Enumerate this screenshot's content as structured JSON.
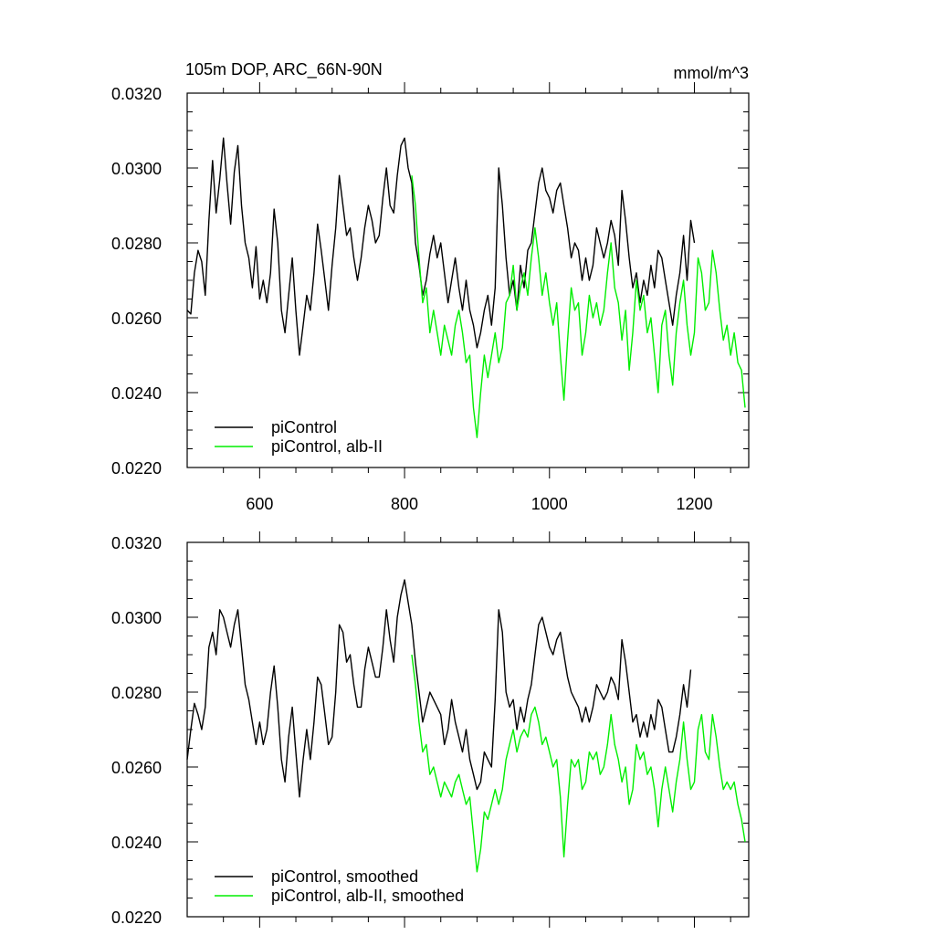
{
  "title_left": "105m DOP, ARC_66N-90N",
  "title_right": "mmol/m^3",
  "colors": {
    "control": "#000000",
    "alb": "#00ee00"
  },
  "chart_data": [
    {
      "type": "line",
      "xlim": [
        500,
        1275
      ],
      "ylim": [
        0.022,
        0.032
      ],
      "yticks": [
        "0.0220",
        "0.0240",
        "0.0260",
        "0.0280",
        "0.0300",
        "0.0320"
      ],
      "xticks": [
        "600",
        "800",
        "1000",
        "1200"
      ],
      "legend": "bottom-left",
      "series": [
        {
          "name": "piControl",
          "x": [
            500,
            505,
            510,
            515,
            520,
            525,
            530,
            535,
            540,
            545,
            550,
            555,
            560,
            565,
            570,
            575,
            580,
            585,
            590,
            595,
            600,
            605,
            610,
            615,
            620,
            625,
            630,
            635,
            640,
            645,
            650,
            655,
            660,
            665,
            670,
            675,
            680,
            685,
            690,
            695,
            700,
            705,
            710,
            715,
            720,
            725,
            730,
            735,
            740,
            745,
            750,
            755,
            760,
            765,
            770,
            775,
            780,
            785,
            790,
            795,
            800,
            805,
            810,
            815,
            820,
            825,
            830,
            835,
            840,
            845,
            850,
            855,
            860,
            865,
            870,
            875,
            880,
            885,
            890,
            895,
            900,
            905,
            910,
            915,
            920,
            925,
            930,
            935,
            940,
            945,
            950,
            955,
            960,
            965,
            970,
            975,
            980,
            985,
            990,
            995,
            1000,
            1005,
            1010,
            1015,
            1020,
            1025,
            1030,
            1035,
            1040,
            1045,
            1050,
            1055,
            1060,
            1065,
            1070,
            1075,
            1080,
            1085,
            1090,
            1095,
            1100,
            1105,
            1110,
            1115,
            1120,
            1125,
            1130,
            1135,
            1140,
            1145,
            1150,
            1155,
            1160,
            1165,
            1170,
            1175,
            1180,
            1185,
            1190,
            1195,
            1200
          ],
          "values": [
            0.0262,
            0.0261,
            0.0272,
            0.0278,
            0.0275,
            0.0266,
            0.0286,
            0.0302,
            0.0288,
            0.0297,
            0.0308,
            0.0296,
            0.0285,
            0.0299,
            0.0306,
            0.029,
            0.028,
            0.0276,
            0.0268,
            0.0279,
            0.0265,
            0.027,
            0.0264,
            0.0272,
            0.0289,
            0.028,
            0.0262,
            0.0256,
            0.0266,
            0.0276,
            0.0262,
            0.025,
            0.0258,
            0.0266,
            0.0262,
            0.0272,
            0.0285,
            0.0278,
            0.027,
            0.0262,
            0.0274,
            0.0284,
            0.0298,
            0.029,
            0.0282,
            0.0284,
            0.0276,
            0.027,
            0.0276,
            0.0284,
            0.029,
            0.0286,
            0.028,
            0.0282,
            0.0292,
            0.03,
            0.029,
            0.0288,
            0.0298,
            0.0306,
            0.0308,
            0.03,
            0.0296,
            0.028,
            0.0274,
            0.0266,
            0.027,
            0.0277,
            0.0282,
            0.0276,
            0.028,
            0.0272,
            0.0264,
            0.027,
            0.0276,
            0.0268,
            0.0262,
            0.027,
            0.0262,
            0.0258,
            0.0252,
            0.0256,
            0.0262,
            0.0266,
            0.0258,
            0.0268,
            0.03,
            0.029,
            0.0276,
            0.0266,
            0.027,
            0.0262,
            0.0274,
            0.0268,
            0.0278,
            0.028,
            0.0288,
            0.0296,
            0.03,
            0.0294,
            0.0292,
            0.0288,
            0.0294,
            0.0296,
            0.029,
            0.0284,
            0.0276,
            0.028,
            0.0278,
            0.027,
            0.0276,
            0.027,
            0.0274,
            0.0284,
            0.028,
            0.0276,
            0.028,
            0.0286,
            0.0282,
            0.0274,
            0.0294,
            0.0286,
            0.0276,
            0.0268,
            0.0272,
            0.0264,
            0.027,
            0.0266,
            0.0274,
            0.0268,
            0.0278,
            0.0276,
            0.027,
            0.0264,
            0.0258,
            0.0266,
            0.0272,
            0.0282,
            0.027,
            0.0286,
            0.028
          ]
        },
        {
          "name": "piControl, alb-II",
          "x": [
            810,
            815,
            820,
            825,
            830,
            835,
            840,
            845,
            850,
            855,
            860,
            865,
            870,
            875,
            880,
            885,
            890,
            895,
            900,
            905,
            910,
            915,
            920,
            925,
            930,
            935,
            940,
            945,
            950,
            955,
            960,
            965,
            970,
            975,
            980,
            985,
            990,
            995,
            1000,
            1005,
            1010,
            1015,
            1020,
            1025,
            1030,
            1035,
            1040,
            1045,
            1050,
            1055,
            1060,
            1065,
            1070,
            1075,
            1080,
            1085,
            1090,
            1095,
            1100,
            1105,
            1110,
            1115,
            1120,
            1125,
            1130,
            1135,
            1140,
            1145,
            1150,
            1155,
            1160,
            1165,
            1170,
            1175,
            1180,
            1185,
            1190,
            1195,
            1200,
            1205,
            1210,
            1215,
            1220,
            1225,
            1230,
            1235,
            1240,
            1245,
            1250,
            1255,
            1260,
            1265,
            1270
          ],
          "values": [
            0.0298,
            0.029,
            0.0276,
            0.0264,
            0.0268,
            0.0256,
            0.0262,
            0.0256,
            0.025,
            0.0258,
            0.0254,
            0.025,
            0.0258,
            0.0262,
            0.0256,
            0.0248,
            0.025,
            0.0236,
            0.0228,
            0.024,
            0.025,
            0.0244,
            0.025,
            0.0256,
            0.0248,
            0.0252,
            0.0264,
            0.0266,
            0.0274,
            0.0262,
            0.0268,
            0.0272,
            0.0266,
            0.0276,
            0.0284,
            0.0276,
            0.0266,
            0.0272,
            0.0264,
            0.0258,
            0.0264,
            0.025,
            0.0238,
            0.0254,
            0.0268,
            0.0262,
            0.0264,
            0.025,
            0.0256,
            0.0266,
            0.026,
            0.0264,
            0.0258,
            0.0262,
            0.0272,
            0.028,
            0.0268,
            0.0264,
            0.0254,
            0.0262,
            0.0246,
            0.0256,
            0.027,
            0.0262,
            0.0266,
            0.0256,
            0.026,
            0.025,
            0.024,
            0.0258,
            0.0262,
            0.025,
            0.0242,
            0.0256,
            0.0264,
            0.027,
            0.0258,
            0.025,
            0.0256,
            0.0276,
            0.0272,
            0.0262,
            0.0264,
            0.0278,
            0.0272,
            0.0262,
            0.0254,
            0.0258,
            0.025,
            0.0256,
            0.0248,
            0.0246,
            0.0236
          ]
        }
      ]
    },
    {
      "type": "line",
      "xlim": [
        500,
        1275
      ],
      "ylim": [
        0.022,
        0.032
      ],
      "yticks": [
        "0.0220",
        "0.0240",
        "0.0260",
        "0.0280",
        "0.0300",
        "0.0320"
      ],
      "xticks": [],
      "legend": "bottom-left",
      "series": [
        {
          "name": "piControl, smoothed",
          "x": [
            500,
            505,
            510,
            515,
            520,
            525,
            530,
            535,
            540,
            545,
            550,
            555,
            560,
            565,
            570,
            575,
            580,
            585,
            590,
            595,
            600,
            605,
            610,
            615,
            620,
            625,
            630,
            635,
            640,
            645,
            650,
            655,
            660,
            665,
            670,
            675,
            680,
            685,
            690,
            695,
            700,
            705,
            710,
            715,
            720,
            725,
            730,
            735,
            740,
            745,
            750,
            755,
            760,
            765,
            770,
            775,
            780,
            785,
            790,
            795,
            800,
            805,
            810,
            815,
            820,
            825,
            830,
            835,
            840,
            845,
            850,
            855,
            860,
            865,
            870,
            875,
            880,
            885,
            890,
            895,
            900,
            905,
            910,
            915,
            920,
            925,
            930,
            935,
            940,
            945,
            950,
            955,
            960,
            965,
            970,
            975,
            980,
            985,
            990,
            995,
            1000,
            1005,
            1010,
            1015,
            1020,
            1025,
            1030,
            1035,
            1040,
            1045,
            1050,
            1055,
            1060,
            1065,
            1070,
            1075,
            1080,
            1085,
            1090,
            1095,
            1100,
            1105,
            1110,
            1115,
            1120,
            1125,
            1130,
            1135,
            1140,
            1145,
            1150,
            1155,
            1160,
            1165,
            1170,
            1175,
            1180,
            1185,
            1190,
            1195
          ],
          "values": [
            0.0262,
            0.027,
            0.0277,
            0.0274,
            0.027,
            0.0276,
            0.0292,
            0.0296,
            0.029,
            0.0302,
            0.03,
            0.0296,
            0.0292,
            0.0298,
            0.0302,
            0.0292,
            0.0282,
            0.0278,
            0.0272,
            0.0266,
            0.0272,
            0.0266,
            0.027,
            0.028,
            0.0287,
            0.0276,
            0.0262,
            0.0256,
            0.0268,
            0.0276,
            0.0264,
            0.0252,
            0.0262,
            0.027,
            0.0262,
            0.0272,
            0.0284,
            0.0282,
            0.0274,
            0.0266,
            0.0268,
            0.028,
            0.0298,
            0.0296,
            0.0288,
            0.029,
            0.0282,
            0.0276,
            0.0276,
            0.0286,
            0.0292,
            0.0288,
            0.0284,
            0.0284,
            0.0292,
            0.0302,
            0.0294,
            0.0288,
            0.03,
            0.0306,
            0.031,
            0.0304,
            0.0298,
            0.0288,
            0.028,
            0.0272,
            0.0276,
            0.028,
            0.0278,
            0.0276,
            0.0274,
            0.0266,
            0.027,
            0.0278,
            0.0272,
            0.0268,
            0.0264,
            0.027,
            0.0262,
            0.0258,
            0.0254,
            0.0256,
            0.0264,
            0.0262,
            0.026,
            0.0278,
            0.0302,
            0.0296,
            0.028,
            0.0276,
            0.0278,
            0.027,
            0.0276,
            0.0272,
            0.0278,
            0.0282,
            0.029,
            0.0298,
            0.03,
            0.0296,
            0.0292,
            0.029,
            0.0294,
            0.0296,
            0.029,
            0.0284,
            0.028,
            0.0278,
            0.0276,
            0.0272,
            0.0276,
            0.0272,
            0.0276,
            0.0282,
            0.028,
            0.0278,
            0.028,
            0.0284,
            0.0282,
            0.0278,
            0.0294,
            0.0288,
            0.028,
            0.0272,
            0.0274,
            0.0268,
            0.0272,
            0.0268,
            0.0274,
            0.027,
            0.0278,
            0.0276,
            0.027,
            0.0264,
            0.0264,
            0.0268,
            0.0274,
            0.0282,
            0.0276,
            0.0286
          ]
        },
        {
          "name": "piControl, alb-II, smoothed",
          "x": [
            810,
            815,
            820,
            825,
            830,
            835,
            840,
            845,
            850,
            855,
            860,
            865,
            870,
            875,
            880,
            885,
            890,
            895,
            900,
            905,
            910,
            915,
            920,
            925,
            930,
            935,
            940,
            945,
            950,
            955,
            960,
            965,
            970,
            975,
            980,
            985,
            990,
            995,
            1000,
            1005,
            1010,
            1015,
            1020,
            1025,
            1030,
            1035,
            1040,
            1045,
            1050,
            1055,
            1060,
            1065,
            1070,
            1075,
            1080,
            1085,
            1090,
            1095,
            1100,
            1105,
            1110,
            1115,
            1120,
            1125,
            1130,
            1135,
            1140,
            1145,
            1150,
            1155,
            1160,
            1165,
            1170,
            1175,
            1180,
            1185,
            1190,
            1195,
            1200,
            1205,
            1210,
            1215,
            1220,
            1225,
            1230,
            1235,
            1240,
            1245,
            1250,
            1255,
            1260,
            1265,
            1270
          ],
          "values": [
            0.029,
            0.0282,
            0.0272,
            0.0264,
            0.0266,
            0.0258,
            0.026,
            0.0256,
            0.0252,
            0.0256,
            0.0254,
            0.0252,
            0.0256,
            0.0258,
            0.0254,
            0.025,
            0.0252,
            0.0242,
            0.0232,
            0.0238,
            0.0248,
            0.0246,
            0.025,
            0.0254,
            0.025,
            0.0254,
            0.0262,
            0.0266,
            0.027,
            0.0264,
            0.0268,
            0.027,
            0.0268,
            0.0274,
            0.0276,
            0.0272,
            0.0266,
            0.0268,
            0.0264,
            0.026,
            0.0262,
            0.0252,
            0.0236,
            0.025,
            0.0262,
            0.026,
            0.0262,
            0.0254,
            0.0256,
            0.0264,
            0.0262,
            0.0264,
            0.0258,
            0.026,
            0.0266,
            0.0274,
            0.0266,
            0.0262,
            0.0256,
            0.026,
            0.025,
            0.0254,
            0.0266,
            0.0262,
            0.0264,
            0.0258,
            0.026,
            0.0254,
            0.0244,
            0.0254,
            0.026,
            0.0254,
            0.0248,
            0.0256,
            0.0262,
            0.0272,
            0.0262,
            0.0254,
            0.0256,
            0.027,
            0.0274,
            0.0264,
            0.0262,
            0.0274,
            0.0268,
            0.026,
            0.0254,
            0.0256,
            0.0254,
            0.0256,
            0.025,
            0.0246,
            0.024
          ]
        }
      ]
    }
  ]
}
